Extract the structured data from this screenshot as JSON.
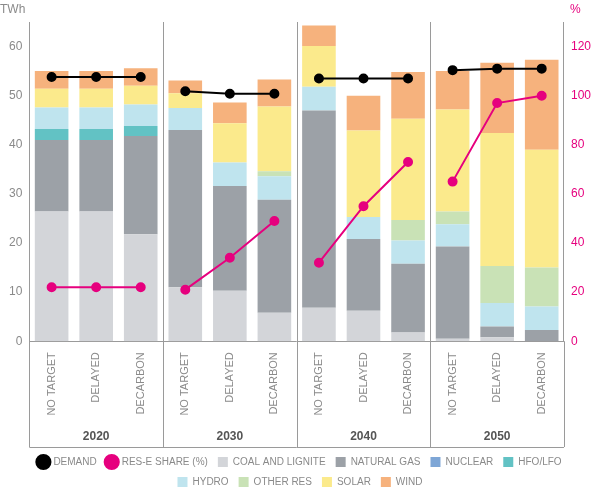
{
  "chart_data": {
    "type": "bar",
    "stacked": true,
    "y_label": "TWh",
    "y2_label": "%",
    "categories": [
      "NO TARGET",
      "DELAYED",
      "DECARBON",
      "NO TARGET",
      "DELAYED",
      "DECARBON",
      "NO TARGET",
      "DELAYED",
      "DECARBON",
      "NO TARGET",
      "DELAYED",
      "DECARBON"
    ],
    "groups": [
      "2020",
      "2030",
      "2040",
      "2050"
    ],
    "series": [
      {
        "name": "COAL AND LIGNITE",
        "color": "#d3d5d9",
        "values": [
          26.4,
          26.4,
          21.8,
          11.0,
          10.3,
          5.8,
          6.8,
          6.2,
          1.8,
          0.5,
          0.8,
          0.0
        ]
      },
      {
        "name": "NATURAL GAS",
        "color": "#9ca1a7",
        "values": [
          14.6,
          14.6,
          20.0,
          32.0,
          21.3,
          23.0,
          40.2,
          14.6,
          14.0,
          18.8,
          2.2,
          2.3
        ]
      },
      {
        "name": "NUCLEAR",
        "color": "#7ea6d6",
        "values": [
          0,
          0,
          0,
          0,
          0,
          0,
          0,
          0,
          0,
          0,
          0,
          0
        ]
      },
      {
        "name": "HFO/LFO",
        "color": "#62c2c4",
        "values": [
          2.2,
          2.2,
          2.0,
          0,
          0,
          0,
          0,
          0,
          0,
          0,
          0,
          0
        ]
      },
      {
        "name": "HYDRO",
        "color": "#bfe4ee",
        "values": [
          4.4,
          4.4,
          4.4,
          4.5,
          4.8,
          4.8,
          4.8,
          4.5,
          4.7,
          4.5,
          4.8,
          4.8
        ]
      },
      {
        "name": "OTHER RES",
        "color": "#c9e2b6",
        "values": [
          0,
          0,
          0,
          0,
          0,
          1.0,
          0,
          0,
          4.2,
          2.6,
          7.5,
          7.9
        ]
      },
      {
        "name": "SOLAR",
        "color": "#fbea8c",
        "values": [
          3.8,
          3.8,
          3.8,
          3.0,
          8.0,
          13.2,
          8.3,
          17.6,
          20.6,
          20.8,
          27.1,
          24.0
        ]
      },
      {
        "name": "WIND",
        "color": "#f6b27d",
        "values": [
          3.6,
          3.6,
          3.6,
          2.6,
          4.2,
          5.5,
          4.2,
          7.1,
          9.5,
          7.8,
          14.3,
          18.3
        ]
      },
      {
        "name": "DEMAND",
        "type": "line",
        "marker": "circle",
        "color": "#000000",
        "values": [
          53.8,
          53.8,
          53.8,
          50.9,
          50.4,
          50.4,
          53.5,
          53.5,
          53.5,
          55.2,
          55.5,
          55.5
        ]
      },
      {
        "name": "RES-E SHARE (%)",
        "type": "line",
        "marker": "circle",
        "axis": "y2",
        "color": "#e6007e",
        "values": [
          22,
          22,
          22,
          21,
          34,
          49,
          32,
          55,
          73,
          65,
          97,
          100
        ]
      }
    ],
    "ylim": [
      0,
      65
    ],
    "yticks": [
      0,
      10,
      20,
      30,
      40,
      50,
      60
    ],
    "y2lim": [
      0,
      130
    ],
    "y2ticks": [
      0,
      20,
      40,
      60,
      80,
      100,
      120
    ],
    "grid": false,
    "legend": "bottom"
  }
}
